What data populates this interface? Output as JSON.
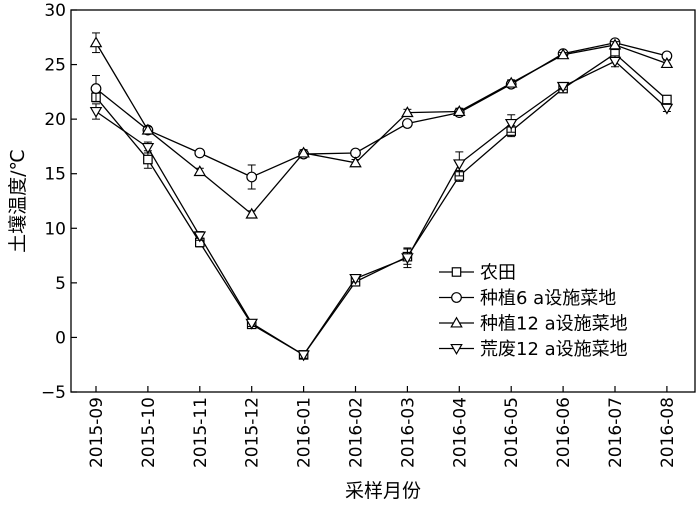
{
  "chart_data": {
    "type": "line",
    "title": "",
    "xlabel": "采样月份",
    "ylabel": "土壤温度/℃",
    "ylim": [
      -5,
      30
    ],
    "yticks": [
      "−5",
      "0",
      "5",
      "10",
      "15",
      "20",
      "25",
      "30"
    ],
    "categories": [
      "2015-09",
      "2015-10",
      "2015-11",
      "2015-12",
      "2016-01",
      "2016-02",
      "2016-03",
      "2016-04",
      "2016-05",
      "2016-06",
      "2016-07",
      "2016-08"
    ],
    "grid": false,
    "legend_position": "lower-right",
    "series": [
      {
        "name": "农田",
        "marker": "square",
        "values": [
          22.0,
          16.3,
          8.7,
          1.2,
          -1.6,
          5.1,
          7.4,
          14.8,
          18.9,
          22.8,
          26.0,
          21.8
        ],
        "errors": [
          0.4,
          0.8,
          0.4,
          0.3,
          0.3,
          0.3,
          0.7,
          0.5,
          0.5,
          0.3,
          0.4,
          0.3
        ]
      },
      {
        "name": "种植6 a设施菜地",
        "marker": "circle",
        "values": [
          22.8,
          19.0,
          16.9,
          14.7,
          16.8,
          16.9,
          19.6,
          20.6,
          23.2,
          26.0,
          27.0,
          25.8
        ],
        "errors": [
          1.2,
          0.3,
          0.2,
          1.1,
          0.2,
          0.2,
          0.3,
          0.3,
          0.3,
          0.2,
          0.3,
          0.3
        ]
      },
      {
        "name": "种植12 a设施菜地",
        "marker": "triangle-up",
        "values": [
          27.0,
          19.0,
          15.2,
          11.3,
          16.9,
          16.0,
          20.6,
          20.7,
          23.3,
          25.9,
          26.8,
          25.1
        ],
        "errors": [
          0.9,
          0.3,
          0.3,
          0.3,
          0.3,
          0.3,
          0.3,
          0.3,
          0.3,
          0.2,
          0.3,
          0.3
        ]
      },
      {
        "name": "荒废12 a设施菜地",
        "marker": "triangle-down",
        "values": [
          20.7,
          17.4,
          9.3,
          1.3,
          -1.6,
          5.4,
          7.3,
          15.9,
          19.6,
          23.0,
          25.3,
          21.0
        ],
        "errors": [
          0.7,
          0.5,
          0.4,
          0.3,
          0.3,
          0.3,
          0.9,
          1.1,
          0.8,
          0.3,
          0.5,
          0.3
        ]
      }
    ]
  }
}
